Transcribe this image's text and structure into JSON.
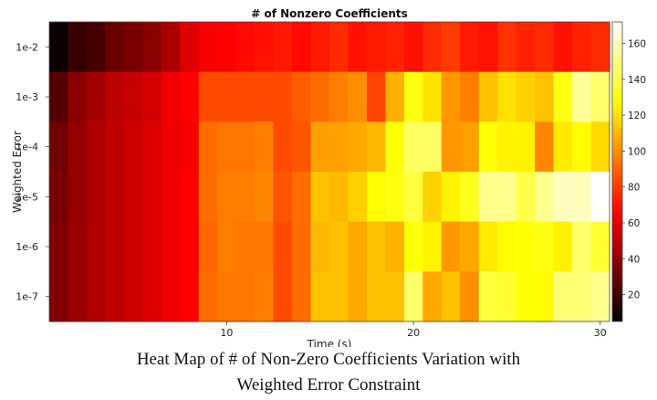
{
  "chart_data": {
    "type": "heatmap",
    "title": "# of Nonzero Coefficients",
    "xlabel": "Time (s)",
    "ylabel": "Weighted Error",
    "x_ticks": [
      10,
      20,
      30
    ],
    "xlim": [
      0.5,
      30.5
    ],
    "rows": [
      "1e-2",
      "1e-3",
      "1e-4",
      "1e-5",
      "1e-6",
      "1e-7"
    ],
    "columns": [
      1,
      2,
      3,
      4,
      5,
      6,
      7,
      8,
      9,
      10,
      11,
      12,
      13,
      14,
      15,
      16,
      17,
      18,
      19,
      20,
      21,
      22,
      23,
      24,
      25,
      26,
      27,
      28,
      29,
      30
    ],
    "colorbar": {
      "ticks": [
        20,
        40,
        60,
        80,
        100,
        120,
        140,
        160
      ],
      "range": [
        5,
        172
      ],
      "colormap": "hot"
    },
    "values": [
      [
        8,
        18,
        22,
        30,
        34,
        38,
        46,
        58,
        64,
        66,
        68,
        70,
        72,
        68,
        72,
        76,
        70,
        72,
        74,
        70,
        76,
        80,
        72,
        70,
        78,
        74,
        76,
        70,
        74,
        76
      ],
      [
        25,
        38,
        44,
        50,
        52,
        56,
        62,
        66,
        84,
        84,
        84,
        84,
        84,
        88,
        92,
        96,
        100,
        82,
        108,
        130,
        120,
        102,
        96,
        112,
        120,
        116,
        112,
        130,
        154,
        146
      ],
      [
        32,
        40,
        46,
        50,
        54,
        58,
        62,
        64,
        92,
        94,
        94,
        96,
        84,
        86,
        104,
        104,
        106,
        110,
        128,
        144,
        144,
        102,
        104,
        128,
        124,
        124,
        98,
        122,
        126,
        118
      ],
      [
        34,
        40,
        46,
        50,
        54,
        58,
        62,
        66,
        92,
        96,
        96,
        98,
        86,
        92,
        112,
        110,
        116,
        126,
        130,
        138,
        116,
        124,
        132,
        152,
        152,
        140,
        152,
        160,
        160,
        172
      ],
      [
        36,
        42,
        46,
        50,
        54,
        58,
        62,
        66,
        90,
        96,
        94,
        94,
        84,
        92,
        110,
        112,
        106,
        112,
        108,
        128,
        124,
        102,
        106,
        122,
        126,
        128,
        130,
        124,
        146,
        136
      ],
      [
        36,
        42,
        46,
        50,
        54,
        58,
        62,
        66,
        92,
        94,
        94,
        96,
        84,
        92,
        112,
        112,
        106,
        112,
        112,
        146,
        106,
        112,
        100,
        138,
        136,
        128,
        126,
        148,
        148,
        152
      ]
    ]
  },
  "caption_line1": "Heat Map of # of Non-Zero Coefficients Variation with",
  "caption_line2": "Weighted Error Constraint"
}
